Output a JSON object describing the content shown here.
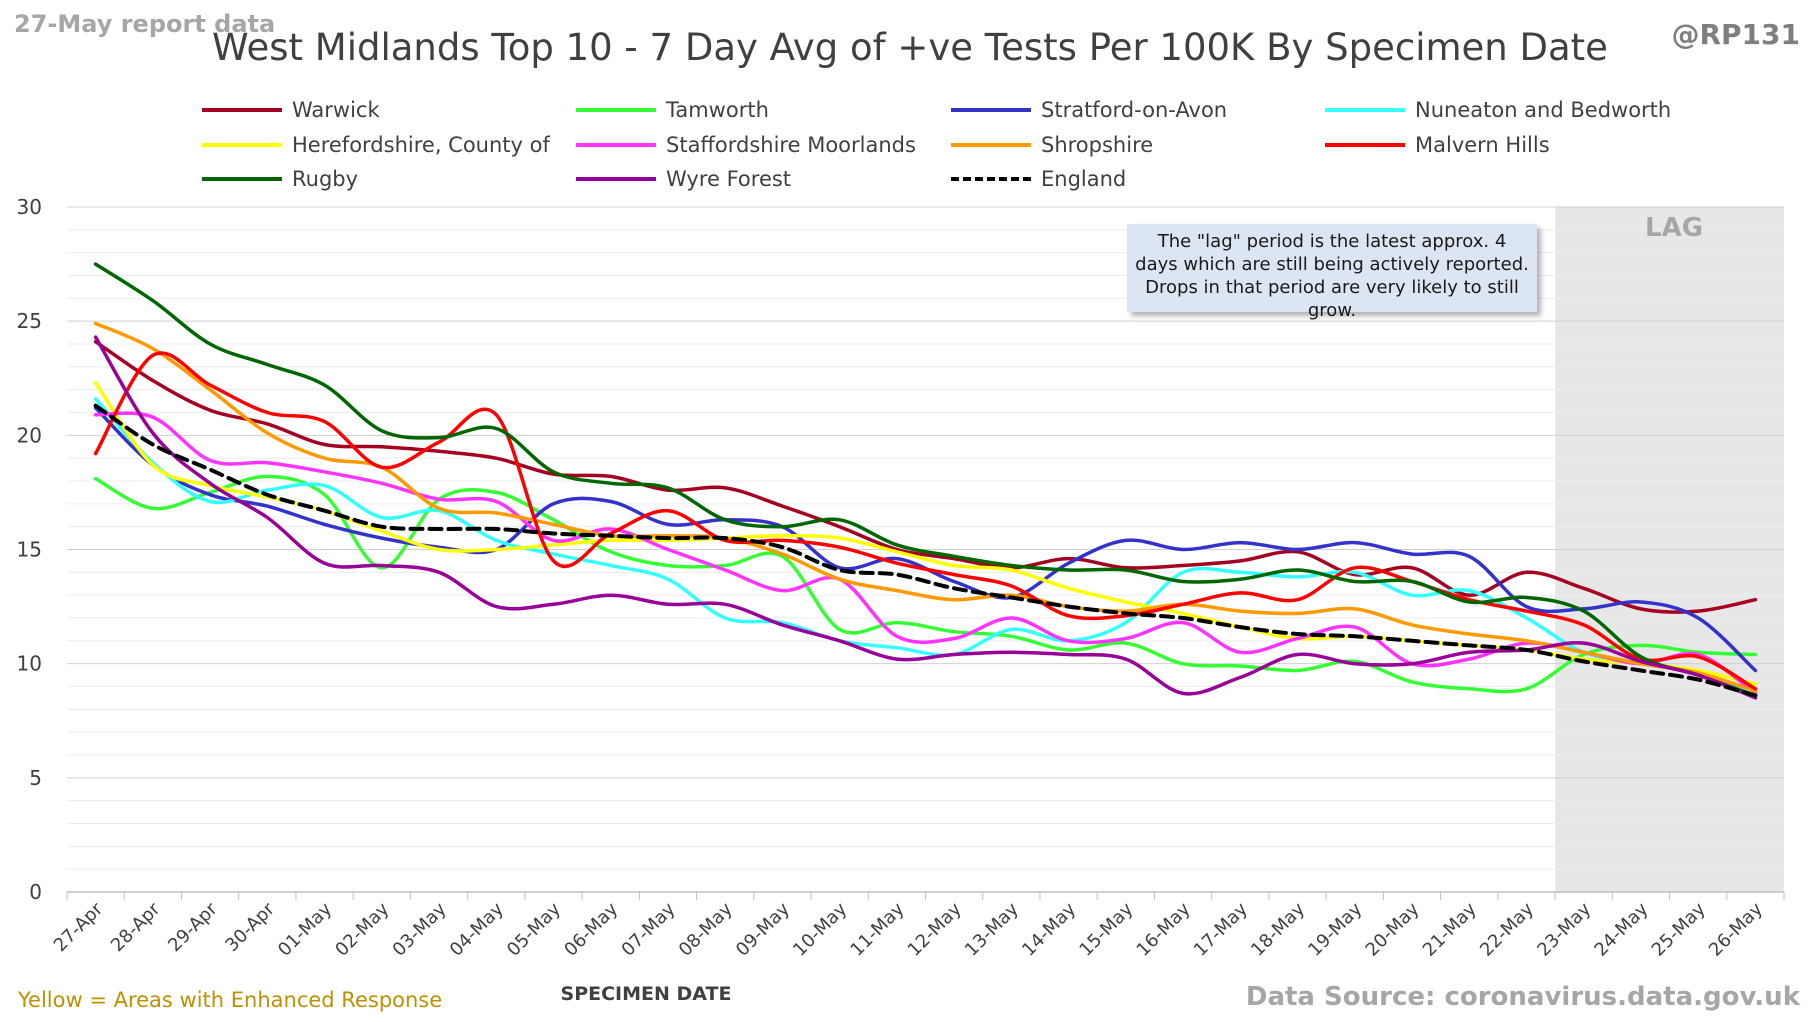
{
  "header": {
    "report_date": "27-May report data",
    "title": "West Midlands Top 10 - 7 Day Avg of +ve Tests Per 100K By Specimen Date",
    "handle": "@RP131"
  },
  "footer": {
    "left_note": "Yellow = Areas with Enhanced Response",
    "source": "Data Source: coronavirus.data.gov.uk"
  },
  "annotation": {
    "lag_label": "LAG",
    "lag_note": "The \"lag\" period is the latest approx. 4 days which are still being actively reported. Drops in that period are very likely to still grow."
  },
  "chart_data": {
    "type": "line",
    "title": "West Midlands Top 10 - 7 Day Avg of +ve Tests Per 100K By Specimen Date",
    "xlabel": "SPECIMEN DATE",
    "ylabel": "",
    "ylim": [
      0,
      30
    ],
    "yticks": [
      0,
      5,
      10,
      15,
      20,
      25,
      30
    ],
    "grid": true,
    "legend_position": "top",
    "lag_start": "23-May",
    "categories": [
      "27-Apr",
      "28-Apr",
      "29-Apr",
      "30-Apr",
      "01-May",
      "02-May",
      "03-May",
      "04-May",
      "05-May",
      "06-May",
      "07-May",
      "08-May",
      "09-May",
      "10-May",
      "11-May",
      "12-May",
      "13-May",
      "14-May",
      "15-May",
      "16-May",
      "17-May",
      "18-May",
      "19-May",
      "20-May",
      "21-May",
      "22-May",
      "23-May",
      "24-May",
      "25-May",
      "26-May"
    ],
    "series": [
      {
        "name": "Warwick",
        "color": "#a50021",
        "dashed": false,
        "values": [
          24.1,
          22.4,
          21.1,
          20.5,
          19.6,
          19.5,
          19.3,
          19.0,
          18.3,
          18.2,
          17.6,
          17.7,
          16.9,
          16.0,
          15.0,
          14.6,
          14.2,
          14.6,
          14.2,
          14.3,
          14.5,
          14.9,
          13.9,
          14.2,
          13.0,
          14.0,
          13.3,
          12.4,
          12.3,
          12.8
        ]
      },
      {
        "name": "Tamworth",
        "color": "#33ff33",
        "dashed": false,
        "values": [
          18.1,
          16.8,
          17.5,
          18.2,
          17.4,
          14.2,
          17.2,
          17.5,
          16.3,
          14.9,
          14.3,
          14.3,
          14.7,
          11.5,
          11.8,
          11.4,
          11.2,
          10.6,
          10.9,
          10.0,
          9.9,
          9.7,
          10.1,
          9.2,
          8.9,
          8.9,
          10.4,
          10.8,
          10.5,
          10.4
        ]
      },
      {
        "name": "Stratford-on-Avon",
        "color": "#3333cc",
        "dashed": false,
        "values": [
          21.2,
          18.7,
          17.4,
          16.9,
          16.1,
          15.5,
          15.1,
          15.0,
          17.0,
          17.1,
          16.1,
          16.3,
          16.0,
          14.2,
          14.6,
          13.6,
          12.9,
          14.4,
          15.4,
          15.0,
          15.3,
          15.0,
          15.3,
          14.8,
          14.7,
          12.5,
          12.4,
          12.7,
          12.0,
          9.7
        ]
      },
      {
        "name": "Nuneaton and Bedworth",
        "color": "#33ffff",
        "dashed": false,
        "values": [
          21.6,
          18.8,
          17.1,
          17.6,
          17.8,
          16.4,
          16.7,
          15.4,
          14.8,
          14.3,
          13.7,
          12.0,
          11.8,
          11.0,
          10.7,
          10.4,
          11.5,
          11.0,
          11.8,
          14.0,
          14.0,
          13.8,
          14.0,
          13.0,
          13.2,
          12.0,
          10.5,
          10.0,
          9.6,
          8.6
        ]
      },
      {
        "name": "Herefordshire, County of",
        "color": "#ffff00",
        "dashed": false,
        "values": [
          22.3,
          18.7,
          17.8,
          17.3,
          16.7,
          15.8,
          15.0,
          15.0,
          15.2,
          15.4,
          15.4,
          15.5,
          15.6,
          15.5,
          14.9,
          14.3,
          14.1,
          13.3,
          12.7,
          12.2,
          11.6,
          11.1,
          11.2,
          11.0,
          10.8,
          10.6,
          10.2,
          10.0,
          9.7,
          9.1
        ]
      },
      {
        "name": "Staffordshire Moorlands",
        "color": "#ff33ff",
        "dashed": false,
        "values": [
          20.9,
          20.8,
          18.9,
          18.8,
          18.4,
          17.9,
          17.2,
          17.1,
          15.4,
          15.9,
          15.0,
          14.1,
          13.2,
          13.7,
          11.2,
          11.1,
          12.0,
          11.0,
          11.1,
          11.8,
          10.5,
          11.1,
          11.6,
          10.0,
          10.2,
          10.9,
          10.5,
          10.0,
          10.4,
          8.7
        ]
      },
      {
        "name": "Shropshire",
        "color": "#ff9900",
        "dashed": false,
        "values": [
          24.9,
          23.8,
          22.0,
          20.1,
          19.0,
          18.6,
          16.8,
          16.6,
          16.1,
          15.6,
          15.6,
          15.5,
          14.8,
          13.7,
          13.2,
          12.8,
          13.0,
          12.5,
          12.3,
          12.6,
          12.3,
          12.2,
          12.4,
          11.7,
          11.3,
          11.0,
          10.5,
          10.0,
          9.6,
          8.8
        ]
      },
      {
        "name": "Malvern Hills",
        "color": "#ff0000",
        "dashed": false,
        "values": [
          19.2,
          23.5,
          22.2,
          21.0,
          20.6,
          18.6,
          19.7,
          20.9,
          14.5,
          15.7,
          16.7,
          15.4,
          15.4,
          15.1,
          14.4,
          13.9,
          13.4,
          12.1,
          12.1,
          12.6,
          13.1,
          12.8,
          14.2,
          13.6,
          12.8,
          12.3,
          11.7,
          10.2,
          10.3,
          8.9
        ]
      },
      {
        "name": "Rugby",
        "color": "#006600",
        "dashed": false,
        "values": [
          27.5,
          25.9,
          24.0,
          23.1,
          22.2,
          20.2,
          19.9,
          20.3,
          18.4,
          17.9,
          17.7,
          16.3,
          16.0,
          16.3,
          15.2,
          14.7,
          14.3,
          14.1,
          14.1,
          13.6,
          13.7,
          14.1,
          13.6,
          13.6,
          12.7,
          12.9,
          12.3,
          10.3,
          9.5,
          8.6
        ]
      },
      {
        "name": "Wyre Forest",
        "color": "#990099",
        "dashed": false,
        "values": [
          24.3,
          20.1,
          17.9,
          16.4,
          14.4,
          14.3,
          14.0,
          12.5,
          12.6,
          13.0,
          12.6,
          12.6,
          11.7,
          11.0,
          10.2,
          10.4,
          10.5,
          10.4,
          10.2,
          8.7,
          9.4,
          10.4,
          10.0,
          10.0,
          10.5,
          10.6,
          10.9,
          10.1,
          9.5,
          8.5
        ]
      },
      {
        "name": "England",
        "color": "#000000",
        "dashed": true,
        "values": [
          21.3,
          19.6,
          18.5,
          17.4,
          16.7,
          16.0,
          15.9,
          15.9,
          15.7,
          15.6,
          15.5,
          15.5,
          15.1,
          14.1,
          13.9,
          13.3,
          12.9,
          12.5,
          12.2,
          12.0,
          11.6,
          11.3,
          11.2,
          11.0,
          10.8,
          10.6,
          10.1,
          9.7,
          9.3,
          8.6
        ]
      }
    ]
  }
}
